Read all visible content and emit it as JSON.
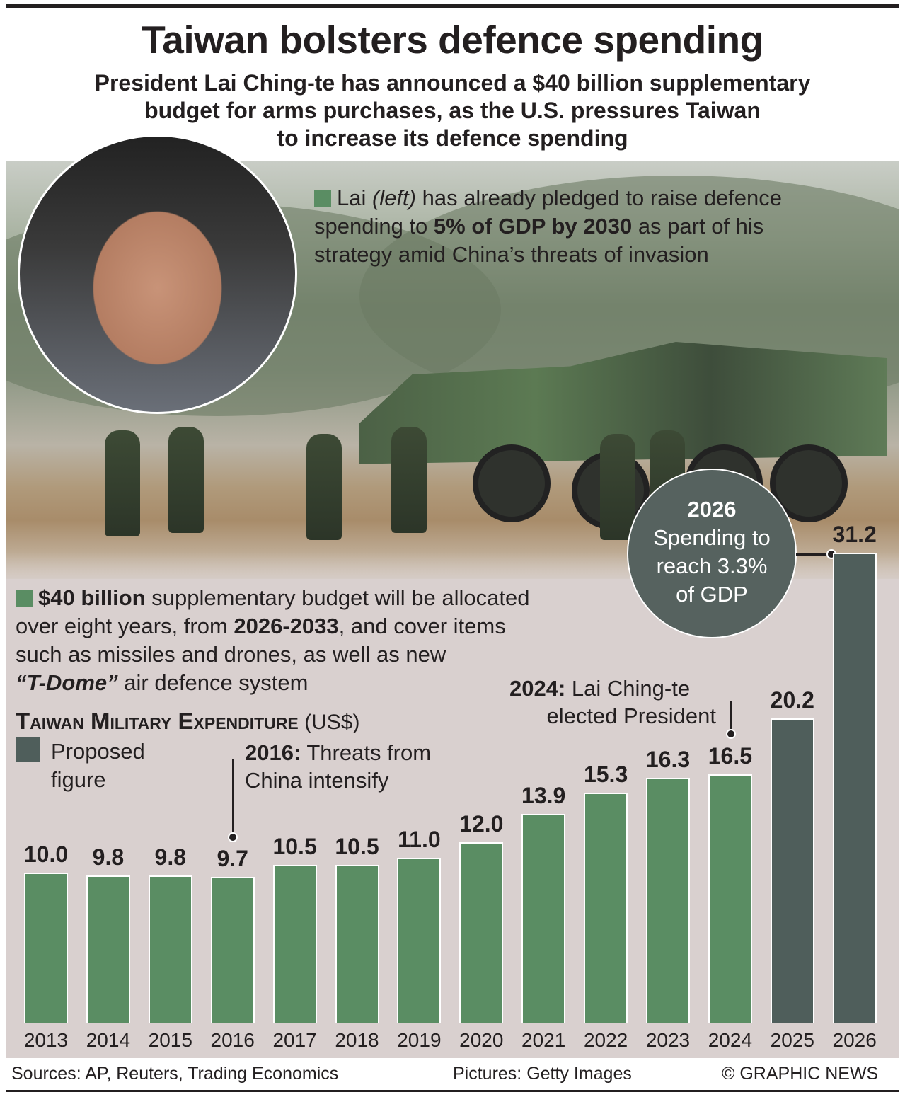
{
  "title": "Taiwan bolsters defence spending",
  "subtitle": [
    "President Lai Ching-te has announced a $40 billion supplementary",
    "budget for arms purchases, as the U.S. pressures Taiwan",
    "to increase its defence spending"
  ],
  "note1": {
    "a": "Lai ",
    "b": "(left)",
    "c": " has already pledged to raise defence",
    "d": "spending to ",
    "e": "5% of GDP by 2030",
    "f": " as part of his",
    "g": "strategy amid China’s threats of invasion"
  },
  "note2": {
    "a": "$40 billion",
    "b": " supplementary budget will be allocated",
    "c": "over eight years, from ",
    "d": "2026-2033",
    "e": ", and cover items",
    "f": "such as missiles and drones, as well as new",
    "g": "“T-Dome”",
    "h": " air defence system"
  },
  "bubble": {
    "year": "2026",
    "line1": "Spending to",
    "line2": "reach 3.3%",
    "line3": "of GDP"
  },
  "annotations": {
    "a2016_bold": "2016:",
    "a2016_1": " Threats from",
    "a2016_2": "China intensify",
    "a2024_bold": "2024:",
    "a2024_1": " Lai Ching-te",
    "a2024_2": "elected President"
  },
  "footer": {
    "sources": "Sources: AP, Reuters, Trading Economics",
    "pictures": "Pictures: Getty Images",
    "credit": "© GRAPHIC NEWS"
  },
  "colors": {
    "actual": "#5a8d63",
    "proposed": "#4f5e5b",
    "panel": "#d9d0cf"
  },
  "chart_data": {
    "type": "bar",
    "title": "Taiwan Military Expenditure",
    "unit": "(US$)",
    "legend": [
      {
        "name": "Proposed figure",
        "color": "#4f5e5b"
      }
    ],
    "categories": [
      "2013",
      "2014",
      "2015",
      "2016",
      "2017",
      "2018",
      "2019",
      "2020",
      "2021",
      "2022",
      "2023",
      "2024",
      "2025",
      "2026"
    ],
    "values": [
      10.0,
      9.8,
      9.8,
      9.7,
      10.5,
      10.5,
      11.0,
      12.0,
      13.9,
      15.3,
      16.3,
      16.5,
      20.2,
      31.2
    ],
    "labels": [
      "10.0",
      "9.8",
      "9.8",
      "9.7",
      "10.5",
      "10.5",
      "11.0",
      "12.0",
      "13.9",
      "15.3",
      "16.3",
      "16.5",
      "20.2",
      "31.2"
    ],
    "proposed": [
      false,
      false,
      false,
      false,
      false,
      false,
      false,
      false,
      false,
      false,
      false,
      false,
      true,
      true
    ],
    "ylim": [
      0,
      31.2
    ],
    "grid": false
  }
}
